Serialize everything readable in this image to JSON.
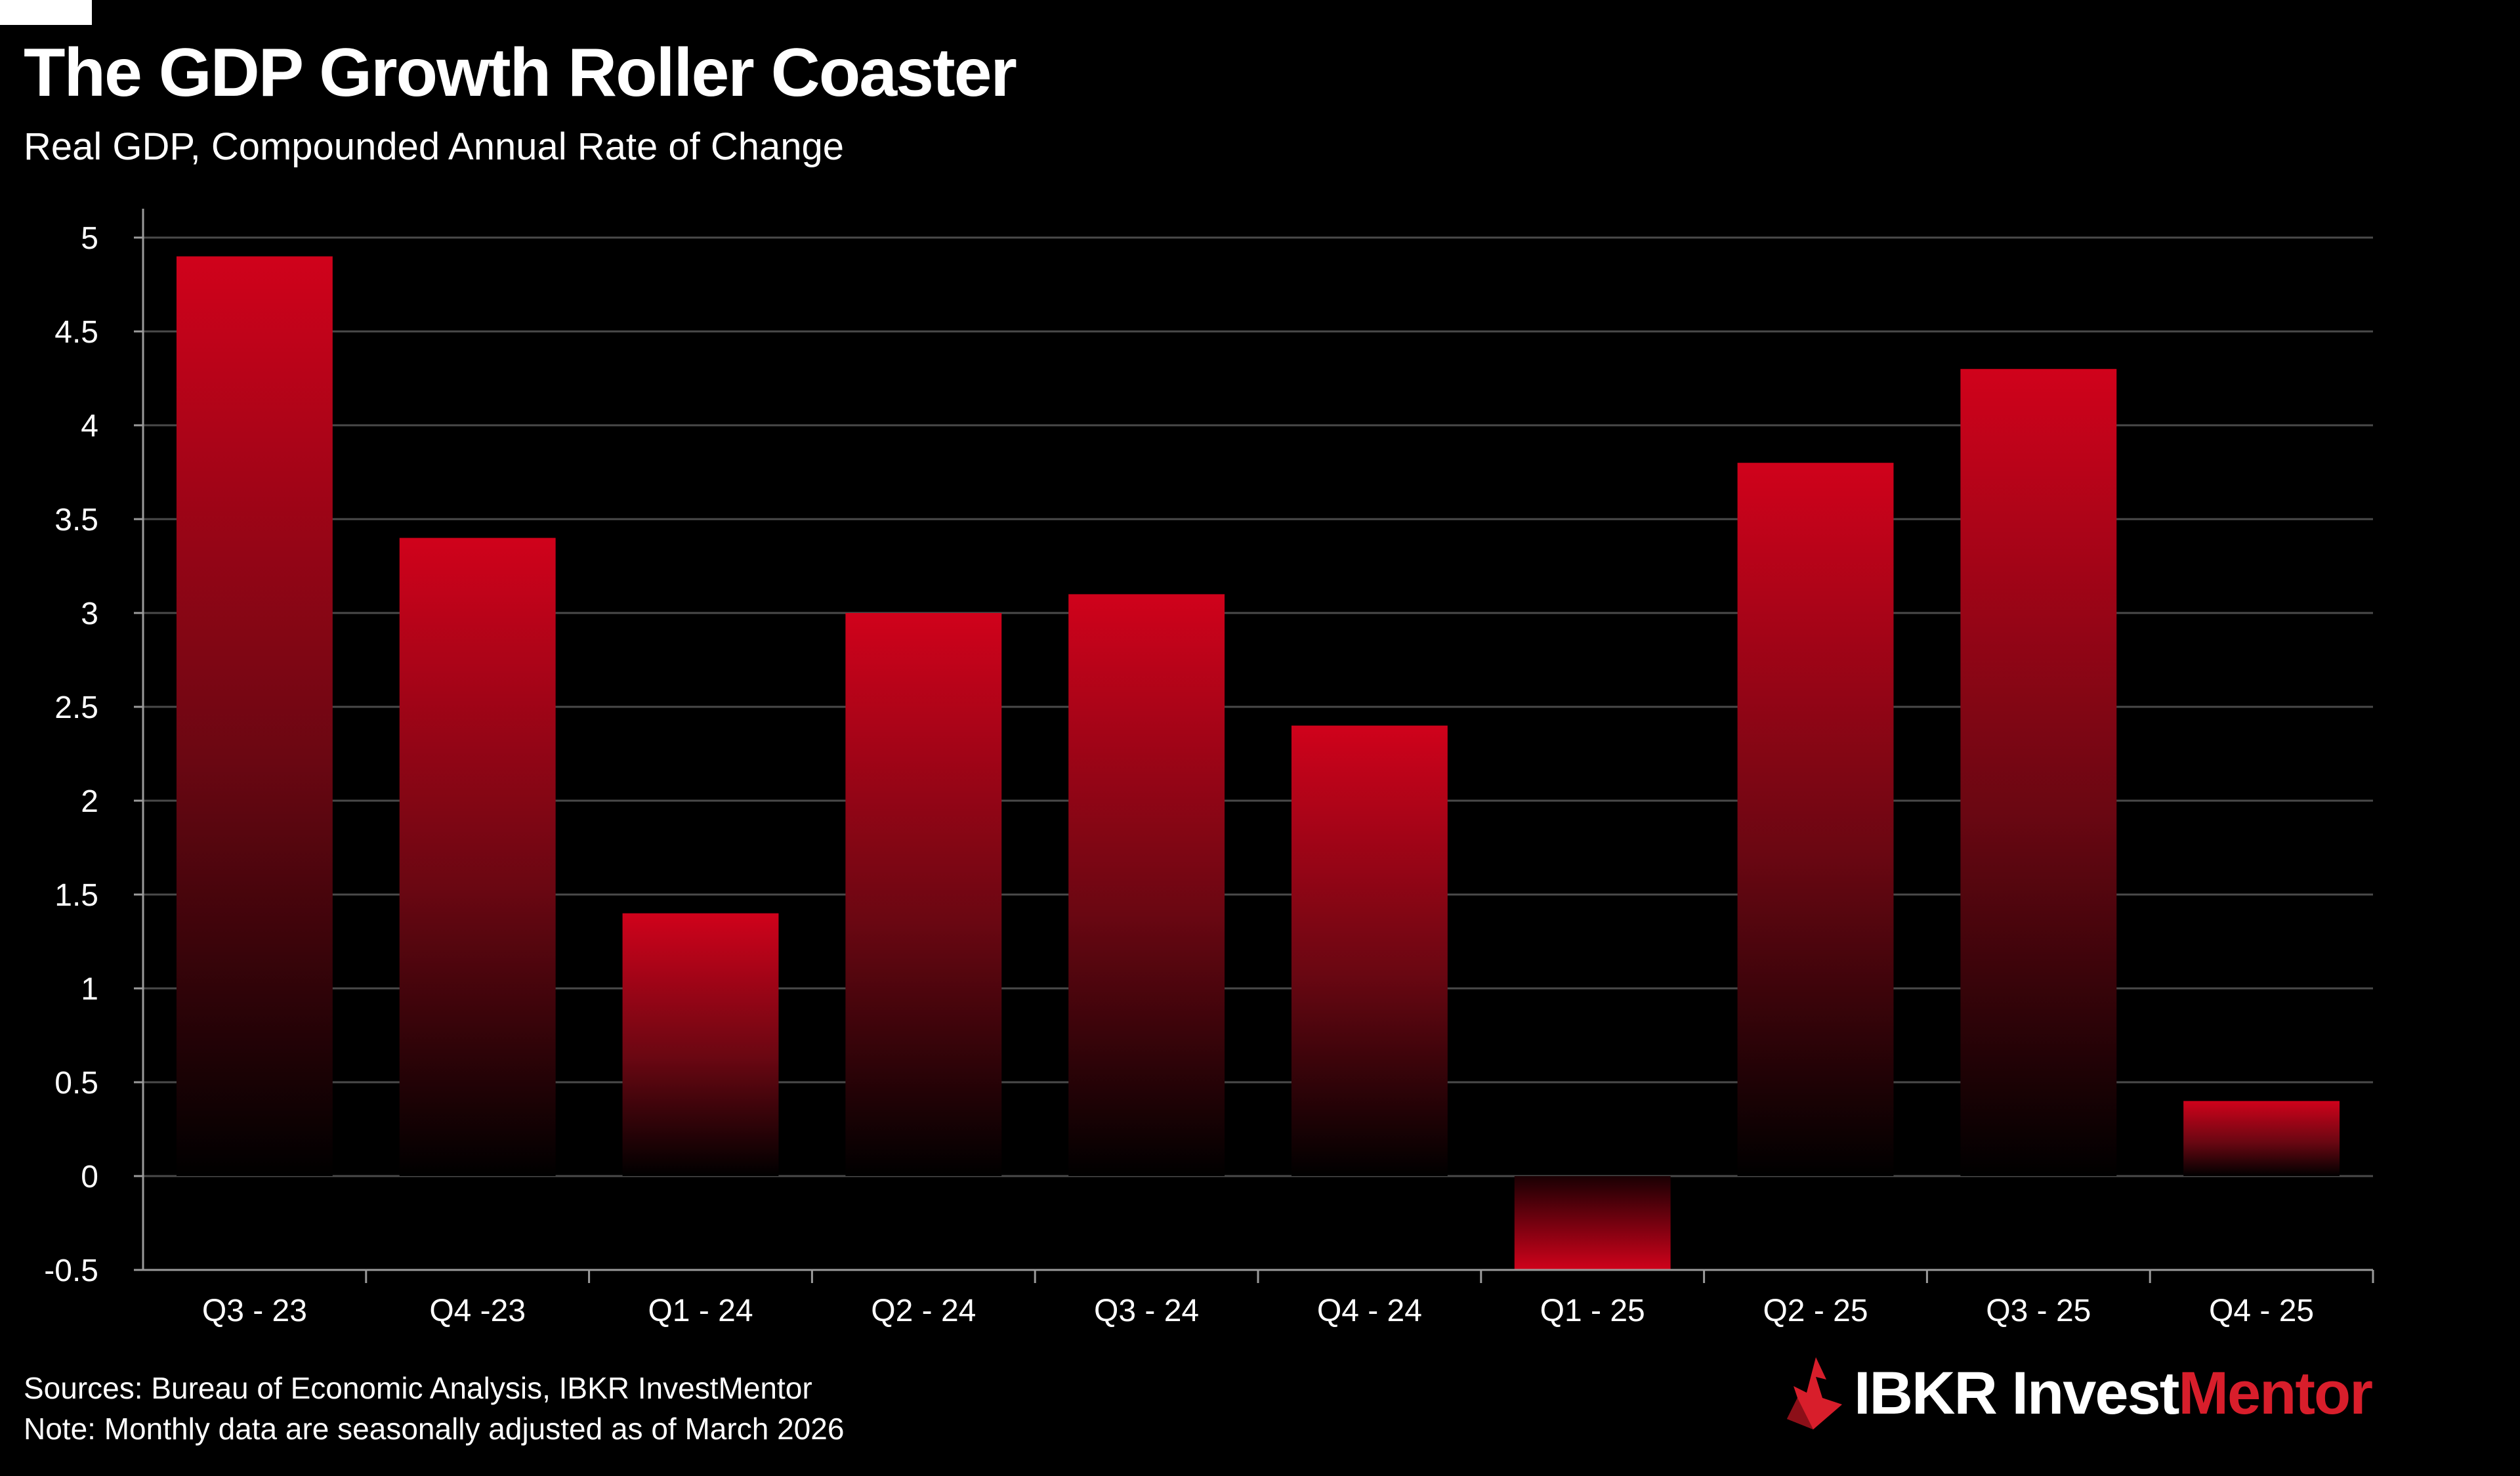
{
  "header": {
    "title": "The GDP Growth Roller Coaster",
    "subtitle": "Real GDP, Compounded Annual Rate of Change"
  },
  "footer": {
    "sources": "Sources: Bureau of Economic Analysis, IBKR InvestMentor",
    "note": "Note: Monthly data are seasonally adjusted as of March 2026"
  },
  "logo": {
    "icon": "ibkr-flame-icon",
    "brand_text": "IBKR",
    "invest_text": "Invest",
    "mentor_text": "Mentor"
  },
  "colors": {
    "background": "#000000",
    "bar_top": "#d0021b",
    "bar_bottom": "#000000",
    "grid": "#4a4a4a",
    "axis": "#9a9a9a",
    "brand_red": "#d81e2b"
  },
  "chart_data": {
    "type": "bar",
    "title": "The GDP Growth Roller Coaster",
    "subtitle": "Real GDP, Compounded Annual Rate of Change",
    "xlabel": "",
    "ylabel": "",
    "categories": [
      "Q3 - 23",
      "Q4 -23",
      "Q1 - 24",
      "Q2 - 24",
      "Q3 - 24",
      "Q4 - 24",
      "Q1 - 25",
      "Q2 - 25",
      "Q3 - 25",
      "Q4 - 25"
    ],
    "values": [
      4.9,
      3.4,
      1.4,
      3.0,
      3.1,
      2.4,
      -0.5,
      3.8,
      4.3,
      0.4
    ],
    "ylim": [
      -0.5,
      5
    ],
    "yticks": [
      5,
      4.5,
      4,
      3.5,
      3,
      2.5,
      2,
      1.5,
      1,
      0.5,
      0,
      -0.5
    ],
    "ytick_labels": [
      "5",
      "4.5",
      "4",
      "3.5",
      "3",
      "2.5",
      "2",
      "1.5",
      "1",
      "0.5",
      "0",
      "-0.5"
    ],
    "grid": true,
    "legend": "none"
  }
}
